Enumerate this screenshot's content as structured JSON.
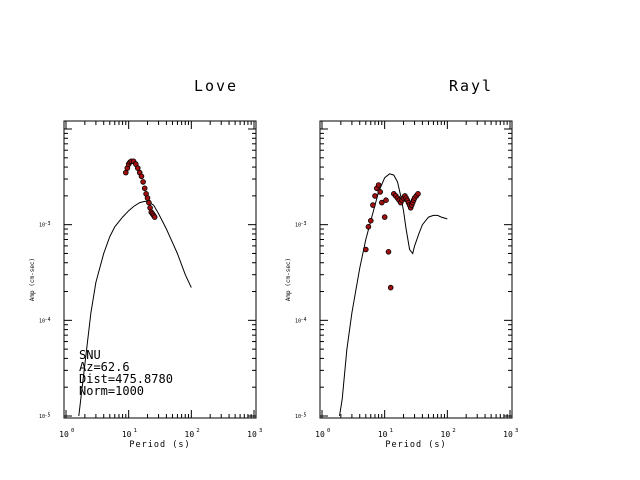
{
  "chart_data": [
    {
      "type": "scatter",
      "title": "Love",
      "xlabel": "Period (s)",
      "ylabel": "Amp (cm-sec)",
      "xscale": "log",
      "yscale": "log",
      "xlim": [
        1,
        1000
      ],
      "ylim": [
        1e-05,
        0.01
      ],
      "x_ticks": [
        {
          "base": "10",
          "exp": "0"
        },
        {
          "base": "10",
          "exp": "1"
        },
        {
          "base": "10",
          "exp": "2"
        },
        {
          "base": "10",
          "exp": "3"
        }
      ],
      "y_ticks": [
        {
          "base": "10",
          "exp": "-5"
        },
        {
          "base": "10",
          "exp": "-4"
        },
        {
          "base": "10",
          "exp": "-3"
        }
      ],
      "annotations": [
        "SNU",
        "Az=62.6",
        "Dist=475.8780",
        "Norm=1000"
      ],
      "series": [
        {
          "kind": "line",
          "x": [
            1.6,
            2,
            2.5,
            3,
            4,
            5,
            6,
            8,
            10,
            12,
            15,
            18,
            20,
            25,
            30,
            40,
            50,
            60,
            80,
            100
          ],
          "y": [
            1e-05,
            3.5e-05,
            0.00012,
            0.00025,
            0.0005,
            0.00075,
            0.00095,
            0.0012,
            0.0014,
            0.00155,
            0.0017,
            0.00175,
            0.00175,
            0.0016,
            0.0013,
            0.0009,
            0.00065,
            0.0005,
            0.0003,
            0.00022
          ]
        },
        {
          "kind": "scatter",
          "x": [
            9,
            9.5,
            10,
            10.5,
            11,
            12,
            13,
            14,
            15,
            16,
            17,
            18,
            19,
            20,
            21,
            22,
            23,
            24,
            25,
            26
          ],
          "y": [
            0.0035,
            0.0039,
            0.0043,
            0.0045,
            0.0046,
            0.0046,
            0.0043,
            0.0039,
            0.0035,
            0.0032,
            0.0028,
            0.0024,
            0.0021,
            0.0019,
            0.0017,
            0.0015,
            0.00135,
            0.0013,
            0.00125,
            0.0012
          ]
        }
      ]
    },
    {
      "type": "scatter",
      "title": "Rayl",
      "xlabel": "Period (s)",
      "ylabel": "Amp (cm-sec)",
      "xscale": "log",
      "yscale": "log",
      "xlim": [
        1,
        1000
      ],
      "ylim": [
        1e-05,
        0.01
      ],
      "x_ticks": [
        {
          "base": "10",
          "exp": "0"
        },
        {
          "base": "10",
          "exp": "1"
        },
        {
          "base": "10",
          "exp": "2"
        },
        {
          "base": "10",
          "exp": "3"
        }
      ],
      "y_ticks": [
        {
          "base": "10",
          "exp": "-5"
        },
        {
          "base": "10",
          "exp": "-4"
        },
        {
          "base": "10",
          "exp": "-3"
        }
      ],
      "series": [
        {
          "kind": "line",
          "x": [
            1.9,
            2.1,
            2.5,
            3,
            4,
            5,
            6,
            7,
            8,
            10,
            12,
            14,
            16,
            18,
            20,
            22,
            25,
            28,
            30,
            35,
            40,
            50,
            60,
            70,
            80,
            100
          ],
          "y": [
            1e-05,
            1.5e-05,
            5e-05,
            0.00012,
            0.00035,
            0.0007,
            0.0011,
            0.0016,
            0.0022,
            0.0031,
            0.0034,
            0.0033,
            0.0028,
            0.002,
            0.0014,
            0.0009,
            0.00055,
            0.0005,
            0.0006,
            0.0008,
            0.001,
            0.0012,
            0.00125,
            0.00125,
            0.0012,
            0.00115
          ]
        },
        {
          "kind": "scatter",
          "x": [
            5,
            5.5,
            6,
            6.5,
            7,
            7.5,
            8,
            8.5,
            9,
            10,
            10.5,
            11.5,
            12.5,
            14,
            15,
            16,
            17,
            18,
            19,
            20,
            21,
            22,
            23,
            24,
            25,
            26,
            27,
            28,
            29,
            30,
            32,
            34
          ],
          "y": [
            0.00055,
            0.00095,
            0.0011,
            0.0016,
            0.002,
            0.0024,
            0.0026,
            0.0022,
            0.0017,
            0.0012,
            0.0018,
            0.00052,
            0.00022,
            0.0021,
            0.002,
            0.0019,
            0.0018,
            0.0017,
            0.0018,
            0.0019,
            0.002,
            0.0019,
            0.0018,
            0.0017,
            0.0016,
            0.0015,
            0.0016,
            0.0017,
            0.0018,
            0.0019,
            0.002,
            0.0021
          ]
        }
      ]
    }
  ]
}
